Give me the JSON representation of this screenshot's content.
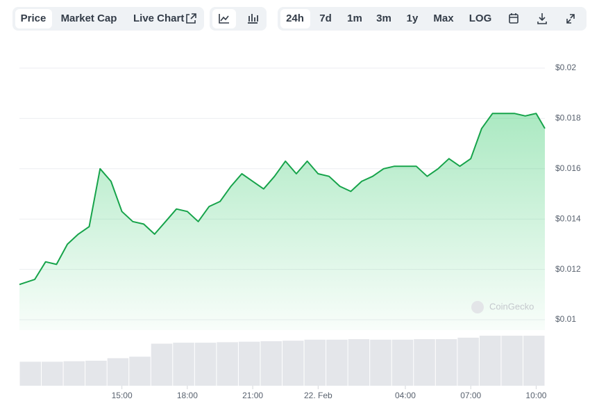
{
  "toolbar": {
    "tabs": [
      "Price",
      "Market Cap",
      "Live Chart"
    ],
    "ranges": [
      "24h",
      "7d",
      "1m",
      "3m",
      "1y",
      "Max",
      "LOG"
    ]
  },
  "watermark": "CoinGecko",
  "chart_data": {
    "type": "line",
    "x": [
      10.3,
      11.0,
      11.5,
      12.0,
      12.5,
      13.0,
      13.5,
      14.0,
      14.5,
      15.0,
      15.5,
      16.0,
      16.5,
      17.0,
      17.5,
      18.0,
      18.5,
      19.0,
      19.5,
      20.0,
      20.5,
      21.0,
      21.5,
      22.0,
      22.5,
      23.0,
      23.5,
      24.0,
      24.5,
      25.0,
      25.5,
      26.0,
      26.5,
      27.0,
      27.5,
      28.0,
      28.5,
      29.0,
      29.5,
      30.0,
      30.5,
      31.0,
      31.5,
      32.0,
      32.5,
      33.0,
      33.5,
      34.0,
      34.4
    ],
    "series": [
      {
        "color": "#16a34a",
        "values": [
          0.0114,
          0.0116,
          0.0123,
          0.0122,
          0.013,
          0.0134,
          0.0137,
          0.016,
          0.0155,
          0.0143,
          0.0139,
          0.0138,
          0.0134,
          0.0139,
          0.0144,
          0.0143,
          0.0139,
          0.0145,
          0.0147,
          0.0153,
          0.0158,
          0.0155,
          0.0152,
          0.0157,
          0.0163,
          0.0158,
          0.0163,
          0.0158,
          0.0157,
          0.0153,
          0.0151,
          0.0155,
          0.0157,
          0.016,
          0.0161,
          0.0161,
          0.0161,
          0.0157,
          0.016,
          0.0164,
          0.0161,
          0.0164,
          0.0176,
          0.0182,
          0.0182,
          0.0182,
          0.0181,
          0.0182,
          0.0176
        ]
      }
    ],
    "volume": {
      "color": "#e4e6ea",
      "ylim": [
        0,
        100
      ],
      "values": [
        48,
        48,
        49,
        50,
        55,
        58,
        84,
        86,
        86,
        87,
        88,
        89,
        90,
        92,
        92,
        93,
        92,
        92,
        93,
        93,
        96,
        100,
        100,
        100
      ]
    },
    "xlim": [
      10.3,
      34.4
    ],
    "xticks": [
      {
        "value": 15,
        "label": "15:00"
      },
      {
        "value": 18,
        "label": "18:00"
      },
      {
        "value": 21,
        "label": "21:00"
      },
      {
        "value": 24,
        "label": "22. Feb"
      },
      {
        "value": 28,
        "label": "04:00"
      },
      {
        "value": 31,
        "label": "07:00"
      },
      {
        "value": 34,
        "label": "10:00"
      }
    ],
    "ylim": [
      0.01,
      0.02
    ],
    "yticks": [
      {
        "value": 0.01,
        "label": "$0.01"
      },
      {
        "value": 0.012,
        "label": "$0.012"
      },
      {
        "value": 0.014,
        "label": "$0.014"
      },
      {
        "value": 0.016,
        "label": "$0.016"
      },
      {
        "value": 0.018,
        "label": "$0.018"
      },
      {
        "value": 0.02,
        "label": "$0.02"
      }
    ],
    "grid": true
  }
}
